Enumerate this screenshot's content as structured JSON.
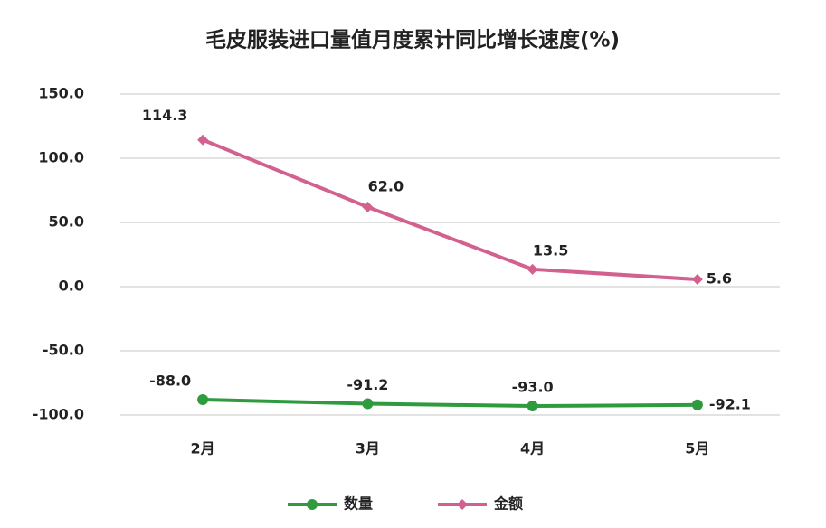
{
  "chart_data": {
    "type": "line",
    "title": "毛皮服装进口量值月度累计同比增长速度(%)",
    "categories": [
      "2月",
      "3月",
      "4月",
      "5月"
    ],
    "series": [
      {
        "name": "数量",
        "color": "#2f9a3e",
        "marker": "circle",
        "values": [
          -88,
          -91.2,
          -93,
          -92.1
        ],
        "value_labels": [
          "-88.0",
          "-91.2",
          "-93.0",
          "-92.1"
        ]
      },
      {
        "name": "金额",
        "color": "#d2618f",
        "marker": "diamond",
        "values": [
          114.3,
          62,
          13.5,
          5.6
        ],
        "value_labels": [
          "114.3",
          "62.0",
          "13.5",
          "5.6"
        ]
      }
    ],
    "ylim": [
      -100,
      150
    ],
    "yticks": [
      {
        "value": -100,
        "label": "-100.0"
      },
      {
        "value": -50,
        "label": "-50.0"
      },
      {
        "value": 0,
        "label": "0.0"
      },
      {
        "value": 50,
        "label": "50.0"
      },
      {
        "value": 100,
        "label": "100.0"
      },
      {
        "value": 150,
        "label": "150.0"
      }
    ],
    "grid": true,
    "legend": "bottom"
  }
}
